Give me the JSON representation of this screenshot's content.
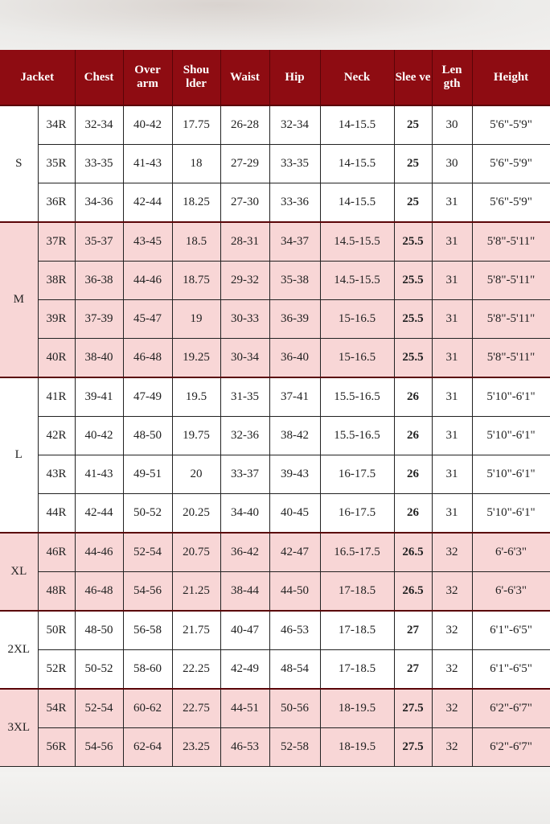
{
  "headers": [
    "Jacket",
    "Chest",
    "Over arm",
    "Shou lder",
    "Waist",
    "Hip",
    "Neck",
    "Slee ve",
    "Len gth",
    "Height"
  ],
  "colors": {
    "header_bg": "#8e0c12",
    "pink_row": "#f8d6d6",
    "white_row": "#ffffff"
  },
  "groups": [
    {
      "size": "S",
      "shaded": false,
      "rows": [
        [
          "34R",
          "32-34",
          "40-42",
          "17.75",
          "26-28",
          "32-34",
          "14-15.5",
          "25",
          "30",
          "5'6\"-5'9\""
        ],
        [
          "35R",
          "33-35",
          "41-43",
          "18",
          "27-29",
          "33-35",
          "14-15.5",
          "25",
          "30",
          "5'6\"-5'9\""
        ],
        [
          "36R",
          "34-36",
          "42-44",
          "18.25",
          "27-30",
          "33-36",
          "14-15.5",
          "25",
          "31",
          "5'6\"-5'9\""
        ]
      ]
    },
    {
      "size": "M",
      "shaded": true,
      "rows": [
        [
          "37R",
          "35-37",
          "43-45",
          "18.5",
          "28-31",
          "34-37",
          "14.5-15.5",
          "25.5",
          "31",
          "5'8\"-5'11\""
        ],
        [
          "38R",
          "36-38",
          "44-46",
          "18.75",
          "29-32",
          "35-38",
          "14.5-15.5",
          "25.5",
          "31",
          "5'8\"-5'11\""
        ],
        [
          "39R",
          "37-39",
          "45-47",
          "19",
          "30-33",
          "36-39",
          "15-16.5",
          "25.5",
          "31",
          "5'8\"-5'11\""
        ],
        [
          "40R",
          "38-40",
          "46-48",
          "19.25",
          "30-34",
          "36-40",
          "15-16.5",
          "25.5",
          "31",
          "5'8\"-5'11\""
        ]
      ]
    },
    {
      "size": "L",
      "shaded": false,
      "rows": [
        [
          "41R",
          "39-41",
          "47-49",
          "19.5",
          "31-35",
          "37-41",
          "15.5-16.5",
          "26",
          "31",
          "5'10\"-6'1\""
        ],
        [
          "42R",
          "40-42",
          "48-50",
          "19.75",
          "32-36",
          "38-42",
          "15.5-16.5",
          "26",
          "31",
          "5'10\"-6'1\""
        ],
        [
          "43R",
          "41-43",
          "49-51",
          "20",
          "33-37",
          "39-43",
          "16-17.5",
          "26",
          "31",
          "5'10\"-6'1\""
        ],
        [
          "44R",
          "42-44",
          "50-52",
          "20.25",
          "34-40",
          "40-45",
          "16-17.5",
          "26",
          "31",
          "5'10\"-6'1\""
        ]
      ]
    },
    {
      "size": "XL",
      "shaded": true,
      "rows": [
        [
          "46R",
          "44-46",
          "52-54",
          "20.75",
          "36-42",
          "42-47",
          "16.5-17.5",
          "26.5",
          "32",
          "6'-6'3\""
        ],
        [
          "48R",
          "46-48",
          "54-56",
          "21.25",
          "38-44",
          "44-50",
          "17-18.5",
          "26.5",
          "32",
          "6'-6'3\""
        ]
      ]
    },
    {
      "size": "2XL",
      "shaded": false,
      "rows": [
        [
          "50R",
          "48-50",
          "56-58",
          "21.75",
          "40-47",
          "46-53",
          "17-18.5",
          "27",
          "32",
          "6'1\"-6'5\""
        ],
        [
          "52R",
          "50-52",
          "58-60",
          "22.25",
          "42-49",
          "48-54",
          "17-18.5",
          "27",
          "32",
          "6'1\"-6'5\""
        ]
      ]
    },
    {
      "size": "3XL",
      "shaded": true,
      "rows": [
        [
          "54R",
          "52-54",
          "60-62",
          "22.75",
          "44-51",
          "50-56",
          "18-19.5",
          "27.5",
          "32",
          "6'2\"-6'7\""
        ],
        [
          "56R",
          "54-56",
          "62-64",
          "23.25",
          "46-53",
          "52-58",
          "18-19.5",
          "27.5",
          "32",
          "6'2\"-6'7\""
        ]
      ]
    }
  ]
}
